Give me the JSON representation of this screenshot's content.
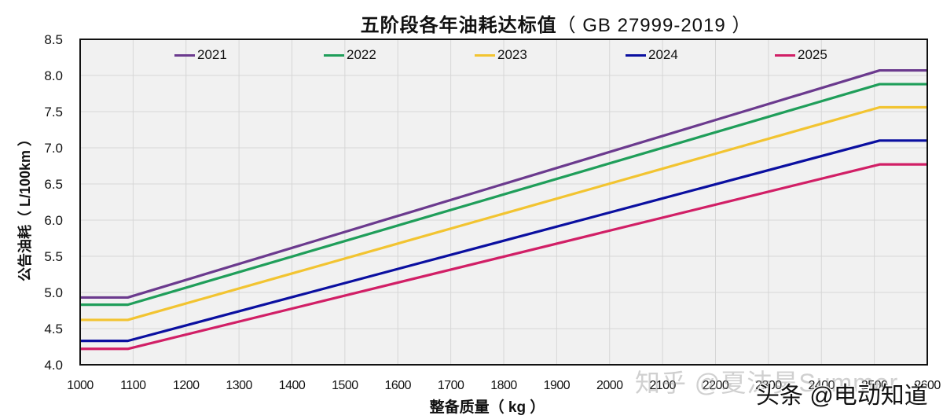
{
  "title": {
    "main": "五阶段各年油耗达标值",
    "sub": "（ GB 27999-2019 ）"
  },
  "axes": {
    "x_label": "整备质量（ kg ）",
    "y_label": "公告油耗（ L/100km ）",
    "x_ticks": [
      "1000",
      "1100",
      "1200",
      "1300",
      "1400",
      "1500",
      "1600",
      "1700",
      "1800",
      "1900",
      "2000",
      "2100",
      "2200",
      "2300",
      "2400",
      "2500",
      "2600"
    ],
    "y_ticks": [
      "4.0",
      "4.5",
      "5.0",
      "5.5",
      "6.0",
      "6.5",
      "7.0",
      "7.5",
      "8.0",
      "8.5"
    ]
  },
  "legend": [
    {
      "label": "2021",
      "color": "#6b3a8e"
    },
    {
      "label": "2022",
      "color": "#1f9e5a"
    },
    {
      "label": "2023",
      "color": "#f2c431"
    },
    {
      "label": "2024",
      "color": "#0a0fa0"
    },
    {
      "label": "2025",
      "color": "#d11f66"
    }
  ],
  "watermarks": {
    "zhihu": "知乎 @夏沫昊Summer",
    "toutiao": "头条 @电动知道"
  },
  "style": {
    "plot_background": "#f1f1f1",
    "grid_color": "#d6d6d6",
    "frame_color": "#111111"
  },
  "chart_data": {
    "type": "line",
    "title": "五阶段各年油耗达标值（ GB 27999-2019 ）",
    "xlabel": "整备质量（ kg ）",
    "ylabel": "公告油耗（ L/100km ）",
    "xlim": [
      1000,
      2600
    ],
    "ylim": [
      4.0,
      8.5
    ],
    "x_tick_step": 100,
    "y_tick_step": 0.5,
    "grid": true,
    "legend_position": "top-inside",
    "x": [
      1000,
      1090,
      2510,
      2600
    ],
    "series": [
      {
        "name": "2021",
        "color": "#6b3a8e",
        "values": [
          4.93,
          4.93,
          8.07,
          8.07
        ]
      },
      {
        "name": "2022",
        "color": "#1f9e5a",
        "values": [
          4.83,
          4.83,
          7.88,
          7.88
        ]
      },
      {
        "name": "2023",
        "color": "#f2c431",
        "values": [
          4.62,
          4.62,
          7.56,
          7.56
        ]
      },
      {
        "name": "2024",
        "color": "#0a0fa0",
        "values": [
          4.33,
          4.33,
          7.1,
          7.1
        ]
      },
      {
        "name": "2025",
        "color": "#d11f66",
        "values": [
          4.22,
          4.22,
          6.77,
          6.77
        ]
      }
    ]
  }
}
